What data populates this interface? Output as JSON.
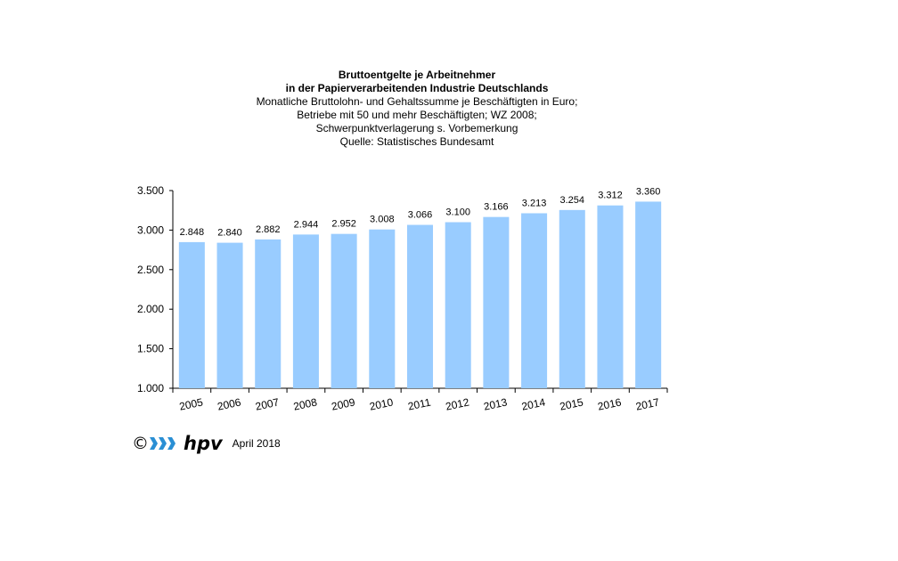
{
  "title": {
    "line1": "Bruttoentgelte  je Arbeitnehmer",
    "line2": "in der Papierverarbeitenden Industrie Deutschlands",
    "line3": "Monatliche Bruttolohn- und Gehaltssumme je Beschäftigten  in Euro;",
    "line4": "Betriebe mit 50 und mehr Beschäftigten; WZ 2008;",
    "line5": "Schwerpunktverlagerung   s. Vorbemerkung",
    "line6": "Quelle:  Statistisches Bundesamt"
  },
  "footer": {
    "copyright": "©",
    "logo_icon": "hpv-logo-icon",
    "brand": "hpv",
    "date": "April 2018"
  },
  "colors": {
    "bar": "#99ccff",
    "axis": "#000000"
  },
  "chart_data": {
    "type": "bar",
    "categories": [
      "2005",
      "2006",
      "2007",
      "2008",
      "2009",
      "2010",
      "2011",
      "2012",
      "2013",
      "2014",
      "2015",
      "2016",
      "2017"
    ],
    "values": [
      2848,
      2840,
      2882,
      2944,
      2952,
      3008,
      3066,
      3100,
      3166,
      3213,
      3254,
      3312,
      3360
    ],
    "data_labels": [
      "2.848",
      "2.840",
      "2.882",
      "2.944",
      "2.952",
      "3.008",
      "3.066",
      "3.100",
      "3.166",
      "3.213",
      "3.254",
      "3.312",
      "3.360"
    ],
    "ylim": [
      1000,
      3500
    ],
    "yticks": [
      1000,
      1500,
      2000,
      2500,
      3000,
      3500
    ],
    "ytick_labels": [
      "1.000",
      "1.500",
      "2.000",
      "2.500",
      "3.000",
      "3.500"
    ],
    "grid": false,
    "legend": "none"
  }
}
